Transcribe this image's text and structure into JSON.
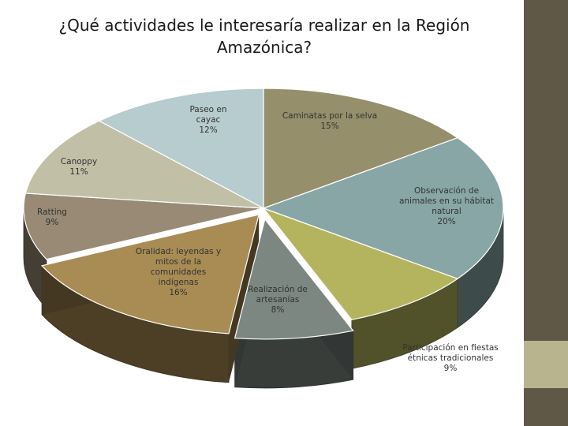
{
  "title": "¿Qué actividades le interesaría realizar en la Región Amazónica?",
  "palette": {
    "background": "#ffffff",
    "right_band": [
      "#5f5847",
      "#b8b48d",
      "#5f5847"
    ]
  },
  "chart_data": {
    "type": "pie",
    "style": "3d-exploded",
    "title": "¿Qué actividades le interesaría realizar en la Región Amazónica?",
    "slices": [
      {
        "label": "Caminatas por la selva",
        "value": 15,
        "display": "15%",
        "color": "#958f6b"
      },
      {
        "label": "Observación de animales en su hábitat natural",
        "value": 20,
        "display": "20%",
        "color": "#88a6a6"
      },
      {
        "label": "Participación en fiestas étnicas tradicionales",
        "value": 9,
        "display": "9%",
        "color": "#b5b45e"
      },
      {
        "label": "Realización de artesanías",
        "value": 8,
        "display": "8%",
        "color": "#7c8781"
      },
      {
        "label": "Oralidad: leyendas y mitos de la comunidades indígenas",
        "value": 16,
        "display": "16%",
        "color": "#a98c54"
      },
      {
        "label": "Ratting",
        "value": 9,
        "display": "9%",
        "color": "#988a74"
      },
      {
        "label": "Canoppy",
        "value": 11,
        "display": "11%",
        "color": "#c1c0a7"
      },
      {
        "label": "Paseo en cayac",
        "value": 12,
        "display": "12%",
        "color": "#b6ccce"
      }
    ],
    "legend": "none"
  }
}
